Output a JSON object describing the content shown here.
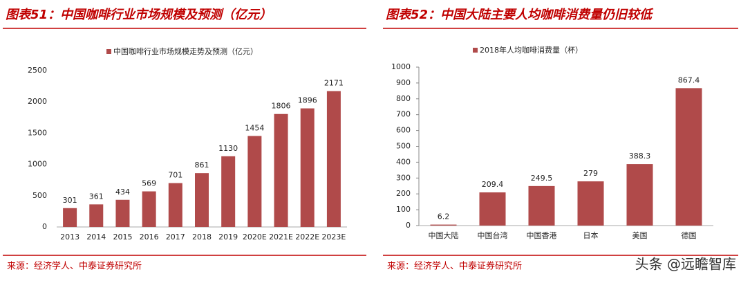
{
  "chart_data": [
    {
      "type": "bar",
      "title": "图表51：中国咖啡行业市场规模及预测（亿元）",
      "categories": [
        "2013",
        "2014",
        "2015",
        "2016",
        "2017",
        "2018",
        "2019",
        "2020E",
        "2021E",
        "2022E",
        "2023E"
      ],
      "series": [
        {
          "name": "中国咖啡行业市场规模走势及预测（亿元）",
          "color": "#b04a4a",
          "values": [
            301,
            361,
            434,
            569,
            701,
            861,
            1130,
            1454,
            1806,
            1896,
            2171
          ]
        }
      ],
      "ylim": [
        0,
        2500
      ],
      "yticks": [
        0,
        500,
        1000,
        1500,
        2000,
        2500
      ],
      "source": "来源：经济学人、中泰证券研究所"
    },
    {
      "type": "bar",
      "title": "图表52：中国大陆主要人均咖啡消费量仍旧较低",
      "categories": [
        "中国大陆",
        "中国台湾",
        "中国香港",
        "日本",
        "美国",
        "德国"
      ],
      "series": [
        {
          "name": "2018年人均咖啡消费量（杯）",
          "color": "#b04a4a",
          "values": [
            6.2,
            209.4,
            249.5,
            279,
            388.3,
            867.4
          ]
        }
      ],
      "ylim": [
        0,
        1000
      ],
      "yticks": [
        0,
        100,
        200,
        300,
        400,
        500,
        600,
        700,
        800,
        900,
        1000
      ],
      "source": "来源：经济学人、中泰证券研究所"
    }
  ],
  "watermark": "头条 @远瞻智库"
}
